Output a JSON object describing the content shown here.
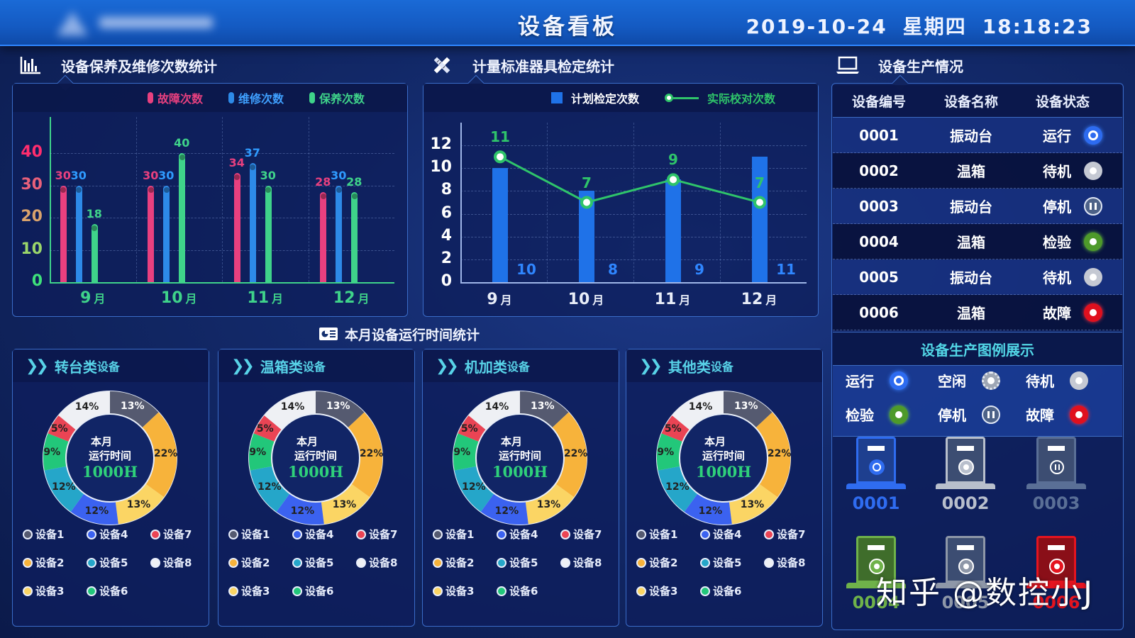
{
  "header": {
    "logo_text": "",
    "title": "设备看板",
    "date": "2019-10-24",
    "weekday": "星期四",
    "time": "18:18:23"
  },
  "sections": {
    "maintenance": {
      "title": "设备保养及维修次数统计",
      "icon": "bar-chart-icon"
    },
    "calibration": {
      "title": "计量标准器具检定统计",
      "icon": "pencil-ruler-icon"
    },
    "production": {
      "title": "设备生产情况",
      "icon": "laptop-icon"
    },
    "runtime": {
      "title": "本月设备运行时间统计",
      "icon": "id-card-icon"
    }
  },
  "chart_data": [
    {
      "type": "bar",
      "title": "设备保养及维修次数统计",
      "categories": [
        "9月",
        "10月",
        "11月",
        "12月"
      ],
      "series": [
        {
          "name": "故障次数",
          "color": "#e8407f",
          "values": [
            30,
            30,
            34,
            28
          ]
        },
        {
          "name": "维修次数",
          "color": "#2d8ae8",
          "values": [
            30,
            30,
            37,
            30
          ]
        },
        {
          "name": "保养次数",
          "color": "#3fd38a",
          "values": [
            18,
            40,
            30,
            28
          ]
        }
      ],
      "yticks": [
        0,
        10,
        20,
        30,
        40
      ],
      "ytick_colors": [
        "#3ee07a",
        "#9bd66a",
        "#d9a26c",
        "#e8607a",
        "#ff2d6e"
      ],
      "ylim": [
        0,
        48
      ],
      "xlabel": "",
      "ylabel": "",
      "grid": true,
      "legend_position": "top"
    },
    {
      "type": "bar+line",
      "title": "计量标准器具检定统计",
      "categories": [
        "9月",
        "10月",
        "11月",
        "12月"
      ],
      "series": [
        {
          "name": "计划检定次数",
          "type": "bar",
          "color": "#1f72e8",
          "values": [
            10,
            8,
            9,
            11
          ]
        },
        {
          "name": "实际校对次数",
          "type": "line",
          "color": "#2fc46a",
          "values": [
            11,
            7,
            9,
            7
          ]
        }
      ],
      "yticks": [
        0,
        2,
        4,
        6,
        8,
        10,
        12
      ],
      "ylim": [
        0,
        14
      ],
      "xlabel": "",
      "ylabel": "",
      "grid": true,
      "legend_position": "top"
    },
    {
      "type": "pie",
      "title": "转台类设备",
      "categories": [
        "设备1",
        "设备2",
        "设备3",
        "设备4",
        "设备5",
        "设备6",
        "设备7",
        "设备8"
      ],
      "values": [
        13,
        22,
        13,
        12,
        12,
        9,
        5,
        14
      ],
      "center_text": [
        "本月",
        "运行时间",
        "1000H"
      ]
    },
    {
      "type": "pie",
      "title": "温箱类设备",
      "categories": [
        "设备1",
        "设备2",
        "设备3",
        "设备4",
        "设备5",
        "设备6",
        "设备7",
        "设备8"
      ],
      "values": [
        13,
        22,
        13,
        12,
        12,
        9,
        5,
        14
      ],
      "center_text": [
        "本月",
        "运行时间",
        "1000H"
      ]
    },
    {
      "type": "pie",
      "title": "机加类设备",
      "categories": [
        "设备1",
        "设备2",
        "设备3",
        "设备4",
        "设备5",
        "设备6",
        "设备7",
        "设备8"
      ],
      "values": [
        13,
        22,
        13,
        12,
        12,
        9,
        5,
        14
      ],
      "center_text": [
        "本月",
        "运行时间",
        "1000H"
      ]
    },
    {
      "type": "pie",
      "title": "其他类设备",
      "categories": [
        "设备1",
        "设备2",
        "设备3",
        "设备4",
        "设备5",
        "设备6",
        "设备7",
        "设备8"
      ],
      "values": [
        13,
        22,
        13,
        12,
        12,
        9,
        5,
        14
      ],
      "center_text": [
        "本月",
        "运行时间",
        "1000H"
      ]
    }
  ],
  "pie_colors": [
    "#555a70",
    "#f7b33b",
    "#fbd564",
    "#3b62f0",
    "#25a6c9",
    "#22c77a",
    "#ea4454",
    "#eef0f4"
  ],
  "pie_label_light": [
    true,
    false,
    false,
    false,
    false,
    false,
    false,
    false
  ],
  "runtime_panels": [
    {
      "name_main": "转台类",
      "name_suffix": "设备"
    },
    {
      "name_main": "温箱类",
      "name_suffix": "设备"
    },
    {
      "name_main": "机加类",
      "name_suffix": "设备"
    },
    {
      "name_main": "其他类",
      "name_suffix": "设备"
    }
  ],
  "center": {
    "l1": "本月",
    "l2": "运行时间",
    "l3": "1000H"
  },
  "device_table": {
    "headers": [
      "设备编号",
      "设备名称",
      "设备状态"
    ],
    "rows": [
      {
        "id": "0001",
        "name": "振动台",
        "status": "运行",
        "state": "run"
      },
      {
        "id": "0002",
        "name": "温箱",
        "status": "待机",
        "state": "standby"
      },
      {
        "id": "0003",
        "name": "振动台",
        "status": "停机",
        "state": "stop"
      },
      {
        "id": "0004",
        "name": "温箱",
        "status": "检验",
        "state": "inspect"
      },
      {
        "id": "0005",
        "name": "振动台",
        "status": "待机",
        "state": "standby"
      },
      {
        "id": "0006",
        "name": "温箱",
        "status": "故障",
        "state": "fault"
      }
    ]
  },
  "status_legend": {
    "title": "设备生产图例展示",
    "items": [
      {
        "label": "运行",
        "state": "run"
      },
      {
        "label": "空闲",
        "state": "idle"
      },
      {
        "label": "待机",
        "state": "standby"
      },
      {
        "label": "检验",
        "state": "inspect"
      },
      {
        "label": "停机",
        "state": "stop"
      },
      {
        "label": "故障",
        "state": "fault"
      }
    ]
  },
  "machines": [
    {
      "id": "0001",
      "state": "run",
      "color": "#2f6cf0"
    },
    {
      "id": "0002",
      "state": "standby",
      "color": "#b8bfcc"
    },
    {
      "id": "0003",
      "state": "stop",
      "color": "#5a6f96"
    },
    {
      "id": "0004",
      "state": "inspect",
      "color": "#6fb24a"
    },
    {
      "id": "0005",
      "state": "standby",
      "color": "#8e97a8"
    },
    {
      "id": "0006",
      "state": "fault",
      "color": "#e5141f"
    }
  ],
  "watermark": "知乎 @数控小J"
}
